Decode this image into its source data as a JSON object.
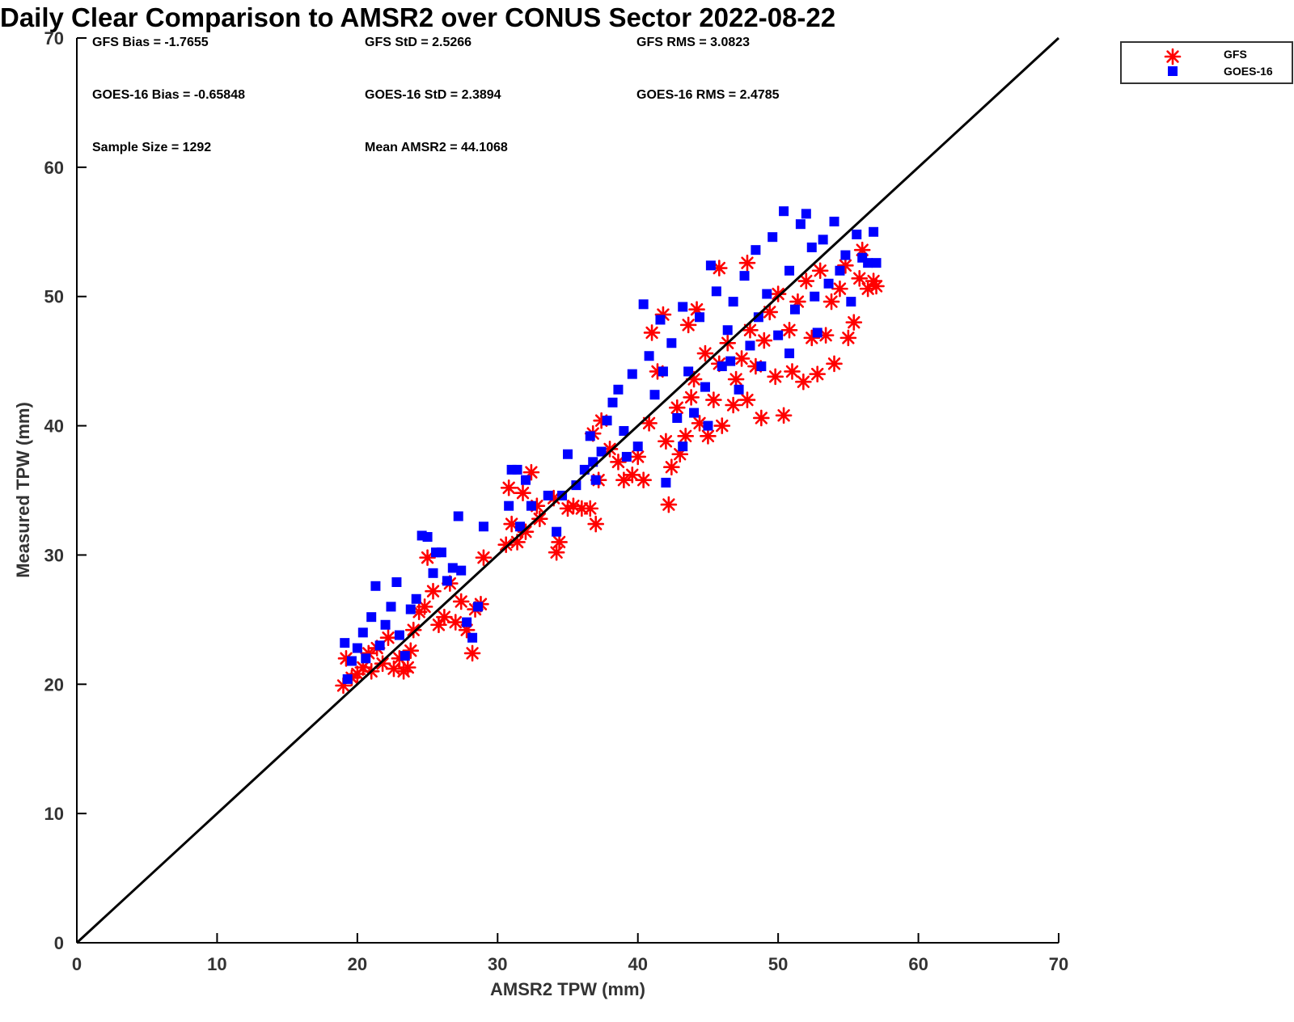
{
  "chart_data": {
    "type": "scatter",
    "title": "Daily Clear Comparison to AMSR2 over CONUS Sector 2022-08-22",
    "xlabel": "AMSR2 TPW (mm)",
    "ylabel": "Measured TPW (mm)",
    "xlim": [
      0,
      70
    ],
    "ylim": [
      0,
      70
    ],
    "xticks": [
      "0",
      "10",
      "20",
      "30",
      "40",
      "50",
      "60",
      "70"
    ],
    "yticks": [
      "0",
      "10",
      "20",
      "30",
      "40",
      "50",
      "60",
      "70"
    ],
    "grid": false,
    "legend": "top-right outside",
    "reference_line": {
      "from": [
        0,
        0
      ],
      "to": [
        70,
        70
      ],
      "color": "#000000"
    },
    "stats": {
      "gfs_bias": "GFS Bias = -1.7655",
      "gfs_std": "GFS StD = 2.5266",
      "gfs_rms": "GFS RMS = 3.0823",
      "goes_bias": "GOES-16 Bias = -0.65848",
      "goes_std": "GOES-16 StD = 2.3894",
      "goes_rms": "GOES-16 RMS = 2.4785",
      "sample_size": "Sample Size = 1292",
      "mean_amsr2": "Mean AMSR2 = 44.1068"
    },
    "series": [
      {
        "name": "GFS",
        "marker": "asterisk",
        "color": "#ff0000",
        "points": [
          [
            19.0,
            19.9
          ],
          [
            19.2,
            22.0
          ],
          [
            19.6,
            20.5
          ],
          [
            20.0,
            20.8
          ],
          [
            20.4,
            21.3
          ],
          [
            20.8,
            22.4
          ],
          [
            21.0,
            21.0
          ],
          [
            21.4,
            22.8
          ],
          [
            21.8,
            21.6
          ],
          [
            22.2,
            23.6
          ],
          [
            22.6,
            21.2
          ],
          [
            23.0,
            22.0
          ],
          [
            23.3,
            21.0
          ],
          [
            23.6,
            21.3
          ],
          [
            23.8,
            22.6
          ],
          [
            24.0,
            24.2
          ],
          [
            24.4,
            25.6
          ],
          [
            24.8,
            26.0
          ],
          [
            25.0,
            29.8
          ],
          [
            25.4,
            27.2
          ],
          [
            25.8,
            24.6
          ],
          [
            26.2,
            25.2
          ],
          [
            26.6,
            27.8
          ],
          [
            27.0,
            24.8
          ],
          [
            27.4,
            26.4
          ],
          [
            27.8,
            24.2
          ],
          [
            28.2,
            22.4
          ],
          [
            28.4,
            25.8
          ],
          [
            28.8,
            26.2
          ],
          [
            29.0,
            29.8
          ],
          [
            30.6,
            30.8
          ],
          [
            30.8,
            35.2
          ],
          [
            31.0,
            32.4
          ],
          [
            31.4,
            31.0
          ],
          [
            31.8,
            34.8
          ],
          [
            32.0,
            31.8
          ],
          [
            32.4,
            36.4
          ],
          [
            32.8,
            33.8
          ],
          [
            33.0,
            32.8
          ],
          [
            34.0,
            34.4
          ],
          [
            34.2,
            30.2
          ],
          [
            34.4,
            31.0
          ],
          [
            35.0,
            33.6
          ],
          [
            35.4,
            33.8
          ],
          [
            36.0,
            33.6
          ],
          [
            36.6,
            33.6
          ],
          [
            37.0,
            32.4
          ],
          [
            37.2,
            35.8
          ],
          [
            36.8,
            39.4
          ],
          [
            37.4,
            40.4
          ],
          [
            38.0,
            38.2
          ],
          [
            38.6,
            37.2
          ],
          [
            39.0,
            35.8
          ],
          [
            39.6,
            36.2
          ],
          [
            40.0,
            37.6
          ],
          [
            40.4,
            35.8
          ],
          [
            40.8,
            40.2
          ],
          [
            41.0,
            47.2
          ],
          [
            41.4,
            44.2
          ],
          [
            41.8,
            48.6
          ],
          [
            42.0,
            38.8
          ],
          [
            42.2,
            33.9
          ],
          [
            42.4,
            36.8
          ],
          [
            42.8,
            41.4
          ],
          [
            43.0,
            37.8
          ],
          [
            43.4,
            39.2
          ],
          [
            43.8,
            42.2
          ],
          [
            44.0,
            43.6
          ],
          [
            44.4,
            40.2
          ],
          [
            44.8,
            45.6
          ],
          [
            45.0,
            39.2
          ],
          [
            45.4,
            42.0
          ],
          [
            45.8,
            44.8
          ],
          [
            46.0,
            40.0
          ],
          [
            46.4,
            46.4
          ],
          [
            46.8,
            41.6
          ],
          [
            47.0,
            43.6
          ],
          [
            47.4,
            45.2
          ],
          [
            47.8,
            42.0
          ],
          [
            48.0,
            47.4
          ],
          [
            48.4,
            44.6
          ],
          [
            48.8,
            40.6
          ],
          [
            49.0,
            46.6
          ],
          [
            49.4,
            48.8
          ],
          [
            49.8,
            43.8
          ],
          [
            50.0,
            50.2
          ],
          [
            50.4,
            40.8
          ],
          [
            50.8,
            47.4
          ],
          [
            51.0,
            44.2
          ],
          [
            51.4,
            49.6
          ],
          [
            51.8,
            43.4
          ],
          [
            52.0,
            51.2
          ],
          [
            52.4,
            46.8
          ],
          [
            52.8,
            44.0
          ],
          [
            53.0,
            52.0
          ],
          [
            53.4,
            47.0
          ],
          [
            53.8,
            49.6
          ],
          [
            54.0,
            44.8
          ],
          [
            54.4,
            50.6
          ],
          [
            54.8,
            52.4
          ],
          [
            55.0,
            46.8
          ],
          [
            55.4,
            48.0
          ],
          [
            55.8,
            51.4
          ],
          [
            56.0,
            53.6
          ],
          [
            56.4,
            50.6
          ],
          [
            56.8,
            51.2
          ],
          [
            57.0,
            50.8
          ],
          [
            45.8,
            52.2
          ],
          [
            47.8,
            52.6
          ],
          [
            43.6,
            47.8
          ],
          [
            44.2,
            49.0
          ]
        ]
      },
      {
        "name": "GOES-16",
        "marker": "square",
        "color": "#0000ff",
        "points": [
          [
            19.1,
            23.2
          ],
          [
            19.3,
            20.4
          ],
          [
            19.6,
            21.8
          ],
          [
            20.0,
            22.8
          ],
          [
            20.4,
            24.0
          ],
          [
            20.6,
            22.0
          ],
          [
            21.0,
            25.2
          ],
          [
            21.3,
            27.6
          ],
          [
            21.6,
            23.0
          ],
          [
            22.0,
            24.6
          ],
          [
            22.4,
            26.0
          ],
          [
            22.8,
            27.9
          ],
          [
            23.0,
            23.8
          ],
          [
            23.4,
            22.2
          ],
          [
            23.8,
            25.8
          ],
          [
            24.2,
            26.6
          ],
          [
            24.6,
            31.5
          ],
          [
            25.0,
            31.4
          ],
          [
            25.4,
            28.6
          ],
          [
            25.6,
            30.2
          ],
          [
            26.0,
            30.2
          ],
          [
            26.4,
            28.0
          ],
          [
            26.8,
            29.0
          ],
          [
            27.2,
            33.0
          ],
          [
            27.4,
            28.8
          ],
          [
            27.8,
            24.8
          ],
          [
            28.2,
            23.6
          ],
          [
            28.6,
            26.0
          ],
          [
            29.0,
            32.2
          ],
          [
            30.8,
            33.8
          ],
          [
            31.0,
            36.6
          ],
          [
            31.4,
            36.6
          ],
          [
            31.6,
            32.2
          ],
          [
            32.0,
            35.8
          ],
          [
            32.4,
            33.8
          ],
          [
            33.6,
            34.6
          ],
          [
            34.2,
            31.8
          ],
          [
            34.6,
            34.6
          ],
          [
            35.0,
            37.8
          ],
          [
            35.6,
            35.4
          ],
          [
            36.2,
            36.6
          ],
          [
            36.6,
            39.2
          ],
          [
            37.0,
            35.8
          ],
          [
            37.4,
            38.0
          ],
          [
            37.8,
            40.4
          ],
          [
            38.2,
            41.8
          ],
          [
            38.6,
            42.8
          ],
          [
            39.0,
            39.6
          ],
          [
            39.6,
            44.0
          ],
          [
            40.0,
            38.4
          ],
          [
            40.4,
            49.4
          ],
          [
            40.8,
            45.4
          ],
          [
            41.2,
            42.4
          ],
          [
            41.6,
            48.2
          ],
          [
            42.0,
            35.6
          ],
          [
            42.4,
            46.4
          ],
          [
            42.8,
            40.6
          ],
          [
            43.2,
            49.2
          ],
          [
            43.6,
            44.2
          ],
          [
            44.0,
            41.0
          ],
          [
            44.4,
            48.4
          ],
          [
            44.8,
            43.0
          ],
          [
            45.2,
            52.4
          ],
          [
            45.6,
            50.4
          ],
          [
            46.0,
            44.6
          ],
          [
            46.4,
            47.4
          ],
          [
            46.8,
            49.6
          ],
          [
            47.2,
            42.8
          ],
          [
            47.6,
            51.6
          ],
          [
            48.0,
            46.2
          ],
          [
            48.4,
            53.6
          ],
          [
            48.8,
            44.6
          ],
          [
            49.2,
            50.2
          ],
          [
            49.6,
            54.6
          ],
          [
            50.0,
            47.0
          ],
          [
            50.4,
            56.6
          ],
          [
            50.8,
            52.0
          ],
          [
            51.2,
            49.0
          ],
          [
            51.6,
            55.6
          ],
          [
            52.0,
            56.4
          ],
          [
            52.4,
            53.8
          ],
          [
            52.8,
            47.2
          ],
          [
            53.2,
            54.4
          ],
          [
            53.6,
            51.0
          ],
          [
            54.0,
            55.8
          ],
          [
            54.4,
            52.0
          ],
          [
            54.8,
            53.2
          ],
          [
            55.2,
            49.6
          ],
          [
            55.6,
            54.8
          ],
          [
            56.0,
            53.0
          ],
          [
            56.4,
            52.6
          ],
          [
            56.8,
            55.0
          ],
          [
            57.0,
            52.6
          ],
          [
            43.2,
            38.4
          ],
          [
            45.0,
            40.0
          ],
          [
            46.6,
            45.0
          ],
          [
            48.6,
            48.4
          ],
          [
            50.8,
            45.6
          ],
          [
            52.6,
            50.0
          ],
          [
            41.8,
            44.2
          ],
          [
            39.2,
            37.6
          ],
          [
            36.8,
            37.2
          ]
        ]
      }
    ]
  }
}
